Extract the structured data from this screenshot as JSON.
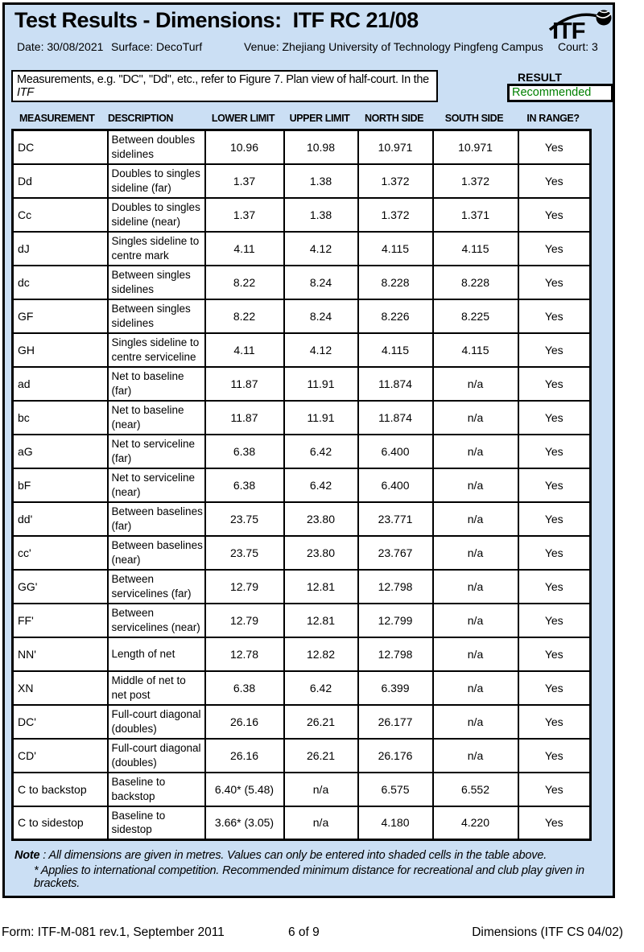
{
  "header": {
    "title": "Test Results - Dimensions:  ITF RC 21/08",
    "logo_text": "ITF",
    "meta": {
      "date": "Date: 30/08/2021",
      "surface": "Surface: DecoTurf",
      "venue": "Venue: Zhejiang University of Technology Pingfeng Campus",
      "court": "Court: 3"
    }
  },
  "note_box": {
    "text": "Measurements, e.g. \"DC\", \"Dd\", etc., refer to Figure 7. Plan view of half-court. In the ",
    "text_italic": "ITF"
  },
  "result": {
    "label": "RESULT",
    "value": "Recommended",
    "value_color": "#008000"
  },
  "table": {
    "columns": [
      "MEASUREMENT",
      "DESCRIPTION",
      "LOWER LIMIT",
      "UPPER LIMIT",
      "NORTH SIDE",
      "SOUTH SIDE",
      "IN RANGE?"
    ],
    "rows": [
      {
        "measurement": "DC",
        "description": "Between doubles sidelines",
        "lower": "10.96",
        "upper": "10.98",
        "north": "10.971",
        "south": "10.971",
        "in_range": "Yes",
        "south_shaded": true
      },
      {
        "measurement": "Dd",
        "description": "Doubles to singles sideline (far)",
        "lower": "1.37",
        "upper": "1.38",
        "north": "1.372",
        "south": "1.372",
        "in_range": "Yes",
        "south_shaded": true
      },
      {
        "measurement": "Cc",
        "description": "Doubles to singles sideline (near)",
        "lower": "1.37",
        "upper": "1.38",
        "north": "1.372",
        "south": "1.371",
        "in_range": "Yes",
        "south_shaded": true
      },
      {
        "measurement": "dJ",
        "description": "Singles sideline to centre mark",
        "lower": "4.11",
        "upper": "4.12",
        "north": "4.115",
        "south": "4.115",
        "in_range": "Yes",
        "south_shaded": true
      },
      {
        "measurement": "dc",
        "description": "Between singles sidelines",
        "lower": "8.22",
        "upper": "8.24",
        "north": "8.228",
        "south": "8.228",
        "in_range": "Yes",
        "south_shaded": true
      },
      {
        "measurement": "GF",
        "description": "Between singles sidelines",
        "lower": "8.22",
        "upper": "8.24",
        "north": "8.226",
        "south": "8.225",
        "in_range": "Yes",
        "south_shaded": true
      },
      {
        "measurement": "GH",
        "description": "Singles sideline to centre serviceline",
        "lower": "4.11",
        "upper": "4.12",
        "north": "4.115",
        "south": "4.115",
        "in_range": "Yes",
        "south_shaded": true
      },
      {
        "measurement": "ad",
        "description": "Net to baseline (far)",
        "lower": "11.87",
        "upper": "11.91",
        "north": "11.874",
        "south": "n/a",
        "in_range": "Yes",
        "south_shaded": false
      },
      {
        "measurement": "bc",
        "description": "Net to baseline (near)",
        "lower": "11.87",
        "upper": "11.91",
        "north": "11.874",
        "south": "n/a",
        "in_range": "Yes",
        "south_shaded": false
      },
      {
        "measurement": "aG",
        "description": "Net to serviceline (far)",
        "lower": "6.38",
        "upper": "6.42",
        "north": "6.400",
        "south": "n/a",
        "in_range": "Yes",
        "south_shaded": false
      },
      {
        "measurement": "bF",
        "description": "Net to serviceline (near)",
        "lower": "6.38",
        "upper": "6.42",
        "north": "6.400",
        "south": "n/a",
        "in_range": "Yes",
        "south_shaded": false
      },
      {
        "measurement": "dd'",
        "description": "Between baselines (far)",
        "lower": "23.75",
        "upper": "23.80",
        "north": "23.771",
        "south": "n/a",
        "in_range": "Yes",
        "south_shaded": false
      },
      {
        "measurement": "cc'",
        "description": "Between baselines (near)",
        "lower": "23.75",
        "upper": "23.80",
        "north": "23.767",
        "south": "n/a",
        "in_range": "Yes",
        "south_shaded": false
      },
      {
        "measurement": "GG'",
        "description": "Between servicelines (far)",
        "lower": "12.79",
        "upper": "12.81",
        "north": "12.798",
        "south": "n/a",
        "in_range": "Yes",
        "south_shaded": false
      },
      {
        "measurement": "FF'",
        "description": "Between servicelines (near)",
        "lower": "12.79",
        "upper": "12.81",
        "north": "12.799",
        "south": "n/a",
        "in_range": "Yes",
        "south_shaded": false
      },
      {
        "measurement": "NN'",
        "description": "Length of net",
        "lower": "12.78",
        "upper": "12.82",
        "north": "12.798",
        "south": "n/a",
        "in_range": "Yes",
        "south_shaded": false
      },
      {
        "measurement": "XN",
        "description": "Middle of net to net post",
        "lower": "6.38",
        "upper": "6.42",
        "north": "6.399",
        "south": "n/a",
        "in_range": "Yes",
        "south_shaded": false
      },
      {
        "measurement": "DC'",
        "description": "Full-court diagonal (doubles)",
        "lower": "26.16",
        "upper": "26.21",
        "north": "26.177",
        "south": "n/a",
        "in_range": "Yes",
        "south_shaded": false
      },
      {
        "measurement": "CD'",
        "description": "Full-court diagonal (doubles)",
        "lower": "26.16",
        "upper": "26.21",
        "north": "26.176",
        "south": "n/a",
        "in_range": "Yes",
        "south_shaded": false
      },
      {
        "measurement": "C to backstop",
        "description": "Baseline to backstop",
        "lower": "6.40* (5.48)",
        "upper": "n/a",
        "north": "6.575",
        "south": "6.552",
        "in_range": "Yes",
        "south_shaded": true
      },
      {
        "measurement": "C to sidestop",
        "description": "Baseline to sidestop",
        "lower": "3.66* (3.05)",
        "upper": "n/a",
        "north": "4.180",
        "south": "4.220",
        "in_range": "Yes",
        "south_shaded": true
      }
    ]
  },
  "footnote": {
    "note_label": "Note",
    "line1_rest": " : All dimensions are given in metres. Values can only be entered into shaded cells in the table above.",
    "line2": "* Applies to international competition. Recommended minimum distance for recreational and club play given in brackets."
  },
  "footer": {
    "left": "Form: ITF-M-081 rev.1, September 2011",
    "center": "6 of 9",
    "right": "Dimensions (ITF CS 04/02)"
  },
  "colors": {
    "page_bg": "#cbdff4",
    "shaded_cell": "#f0f0f0",
    "result_green": "#008000"
  }
}
